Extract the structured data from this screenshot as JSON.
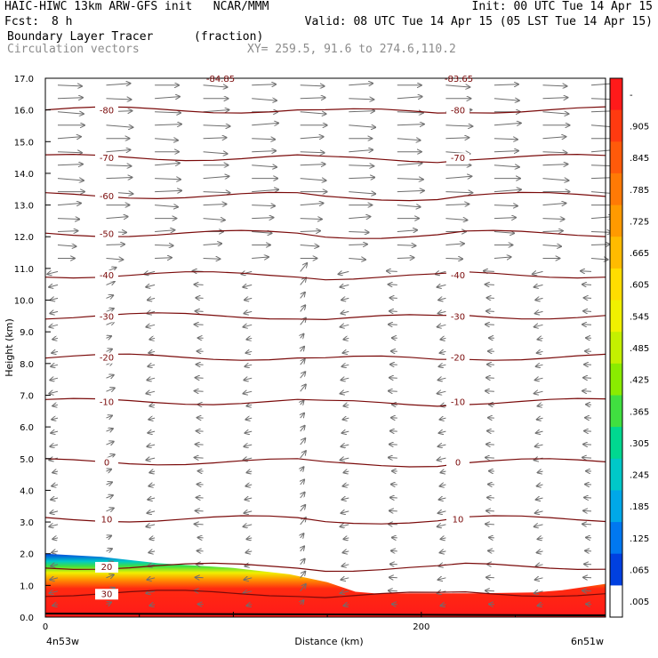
{
  "header": {
    "title_left": "HAIC-HIWC 13km ARW-GFS init   NCAR/MMM",
    "init": "Init: 00 UTC Tue 14 Apr 15",
    "fcst_label": "Fcst:",
    "fcst_value": "8 h",
    "valid": "Valid: 08 UTC Tue 14 Apr 15 (05 LST Tue 14 Apr 15)",
    "field_name": "Boundary Layer Tracer",
    "field_units": "(fraction)",
    "vectors_label": "Circulation vectors",
    "xy_label": "XY= 259.5, 91.6 to 274.6,110.2"
  },
  "colorbar": {
    "labels": [
      "-",
      ".905",
      ".845",
      ".785",
      ".725",
      ".665",
      ".605",
      ".545",
      ".485",
      ".425",
      ".365",
      ".305",
      ".245",
      ".185",
      ".125",
      ".065",
      ".005"
    ],
    "colors": [
      "#ff1a1a",
      "#ff3a10",
      "#ff5a0a",
      "#ff7a05",
      "#ff9a00",
      "#ffbb00",
      "#ffdd00",
      "#f0f000",
      "#c4f000",
      "#8aec00",
      "#40e040",
      "#00d890",
      "#00c8c8",
      "#00a8e8",
      "#0078f0",
      "#0040e0",
      "#ffffff"
    ]
  },
  "chart_data": {
    "type": "cross-section",
    "title": "Boundary Layer Tracer",
    "units": "fraction",
    "xlabel": "Distance (km)",
    "ylabel": "Height (km)",
    "xlim": [
      0,
      298
    ],
    "ylim": [
      0,
      17
    ],
    "x_ticks": [
      0,
      200
    ],
    "y_ticks": [
      0.0,
      1.0,
      2.0,
      3.0,
      4.0,
      5.0,
      6.0,
      7.0,
      8.0,
      9.0,
      10.0,
      11.0,
      12.0,
      13.0,
      14.0,
      15.0,
      16.0,
      17.0
    ],
    "x_end_labels": [
      "4n53w",
      "6n51w"
    ],
    "top_labels": [
      "-84.85",
      "-83.65"
    ],
    "tracer_top_km": [
      [
        0,
        2.0
      ],
      [
        30,
        1.9
      ],
      [
        60,
        1.7
      ],
      [
        100,
        1.55
      ],
      [
        130,
        1.35
      ],
      [
        150,
        1.1
      ],
      [
        165,
        0.8
      ],
      [
        175,
        0.75
      ],
      [
        200,
        0.75
      ],
      [
        230,
        0.75
      ],
      [
        260,
        0.78
      ],
      [
        275,
        0.85
      ],
      [
        298,
        1.05
      ]
    ],
    "temperature_contours_c": [
      {
        "value": -80,
        "height_km": 16.0,
        "labels": [
          -80,
          -80
        ]
      },
      {
        "value": -70,
        "height_km": 14.5,
        "labels": [
          -70,
          -70
        ]
      },
      {
        "value": -60,
        "height_km": 13.3,
        "labels": [
          -60
        ]
      },
      {
        "value": -50,
        "height_km": 12.1,
        "labels": [
          -50
        ]
      },
      {
        "value": -40,
        "height_km": 10.8,
        "labels": [
          -40,
          -40
        ]
      },
      {
        "value": -30,
        "height_km": 9.5,
        "labels": [
          -30,
          -30
        ]
      },
      {
        "value": -20,
        "height_km": 8.2,
        "labels": [
          -20,
          -20
        ]
      },
      {
        "value": -10,
        "height_km": 6.8,
        "labels": [
          -10,
          -10
        ]
      },
      {
        "value": 0,
        "height_km": 4.9,
        "labels": [
          0,
          0
        ]
      },
      {
        "value": 10,
        "height_km": 3.1,
        "labels": [
          10,
          10
        ]
      },
      {
        "value": 20,
        "height_km": 1.6,
        "labels": [
          20
        ]
      },
      {
        "value": 30,
        "height_km": 0.75,
        "labels": [
          30
        ]
      }
    ]
  }
}
